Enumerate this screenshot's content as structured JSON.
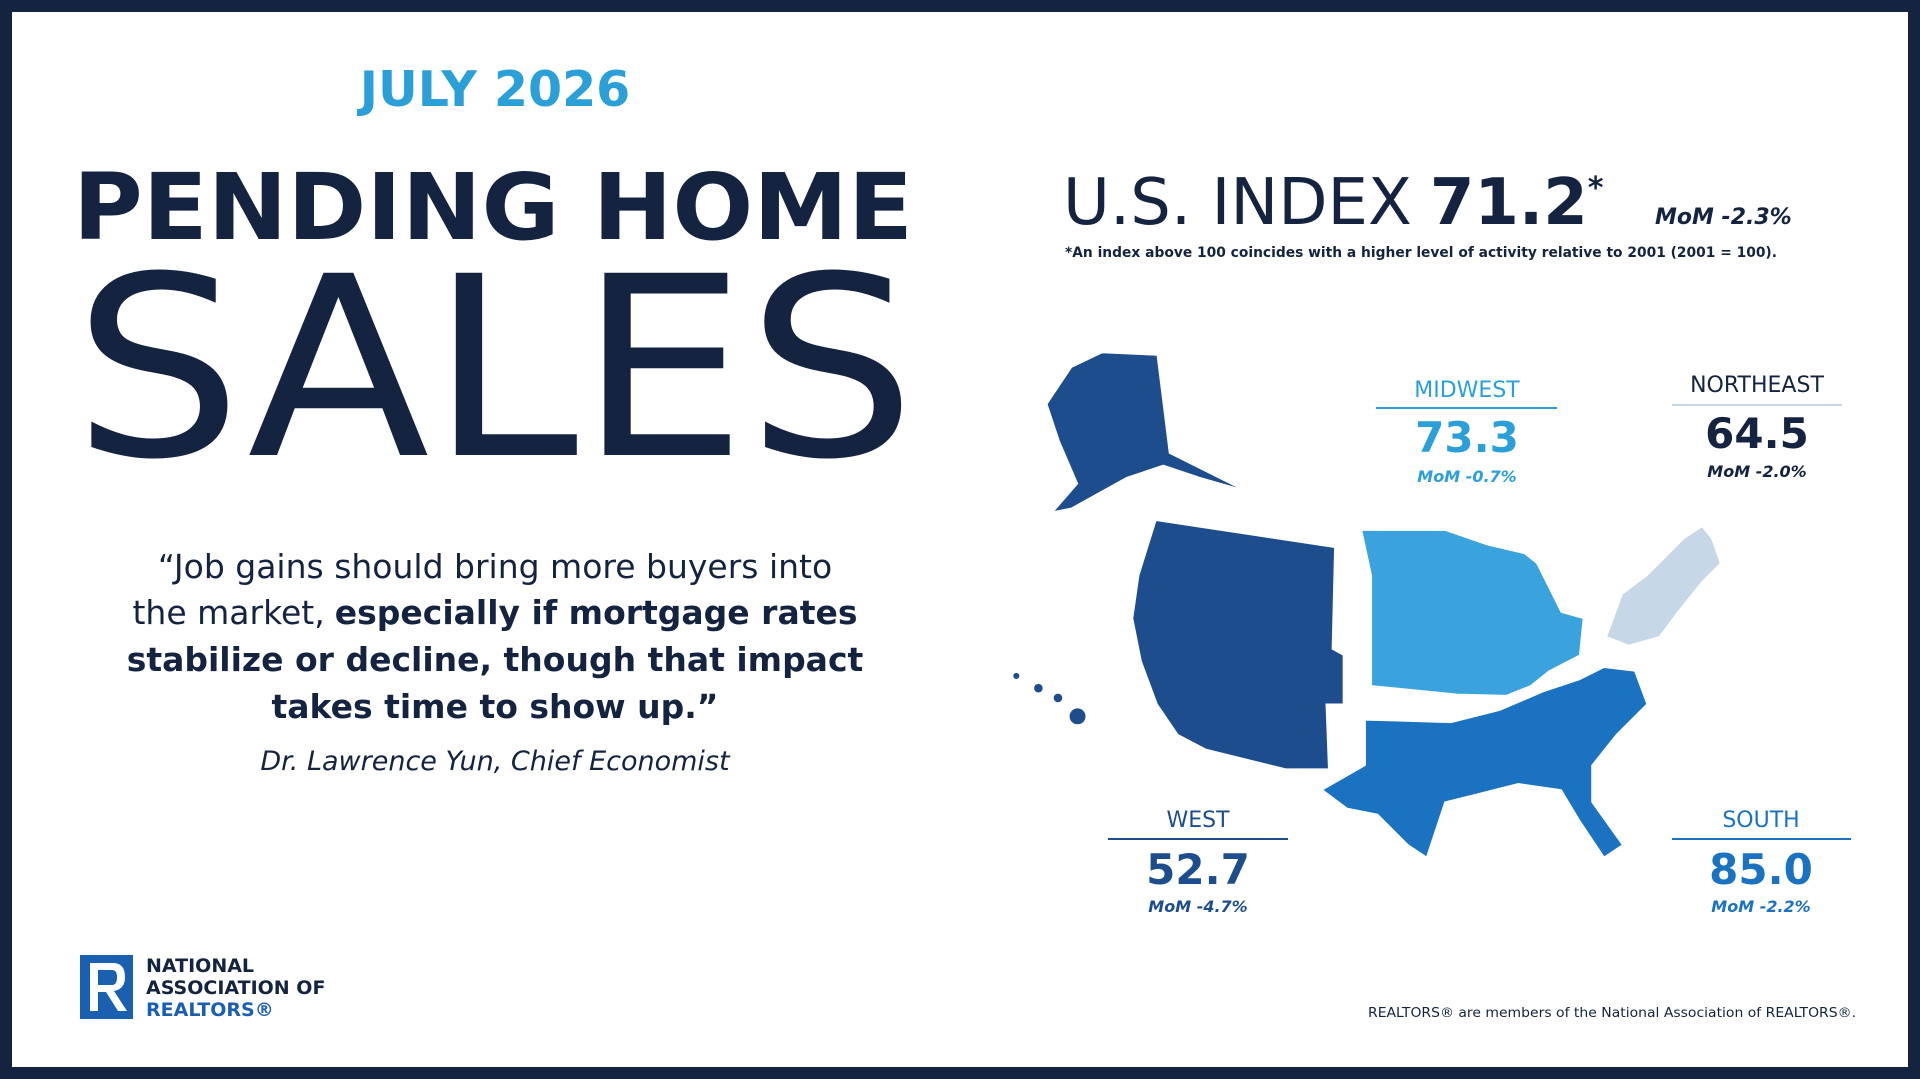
{
  "header": {
    "date": "JULY 2026",
    "title_line1": "PENDING HOME",
    "title_line2": "SALES"
  },
  "quote": {
    "lines": [
      [
        {
          "text": "“Job gains should bring more buyers into",
          "bold": false
        }
      ],
      [
        {
          "text": "the market,",
          "bold": false
        },
        {
          "text": "especially if mortgage rates",
          "bold": true
        }
      ],
      [
        {
          "text": "stabilize or decline, though that impact",
          "bold": true
        }
      ],
      [
        {
          "text": "takes time to show up.”",
          "bold": true
        }
      ]
    ],
    "attribution": "Dr. Lawrence Yun, Chief Economist"
  },
  "index": {
    "label": "U.S. INDEX",
    "value": "71.2",
    "asterisk": "*",
    "mom": "MoM -2.3%",
    "footnote": "*An index above 100 coincides with a higher level of activity relative to 2001 (2001 = 100)."
  },
  "regions": [
    {
      "name": "MIDWEST",
      "value": "73.3",
      "mom": "MoM -0.7%"
    },
    {
      "name": "NORTHEAST",
      "value": "64.5",
      "mom": "MoM -2.0%"
    },
    {
      "name": "WEST",
      "value": "52.7",
      "mom": "MoM -4.7%"
    },
    {
      "name": "SOUTH",
      "value": "85.0",
      "mom": "MoM -2.2%"
    }
  ],
  "logo": {
    "line1": "NATIONAL",
    "line2": "ASSOCIATION OF",
    "line3": "REALTORS®"
  },
  "footer": "REALTORS® are members of the National Association of REALTORS®."
}
